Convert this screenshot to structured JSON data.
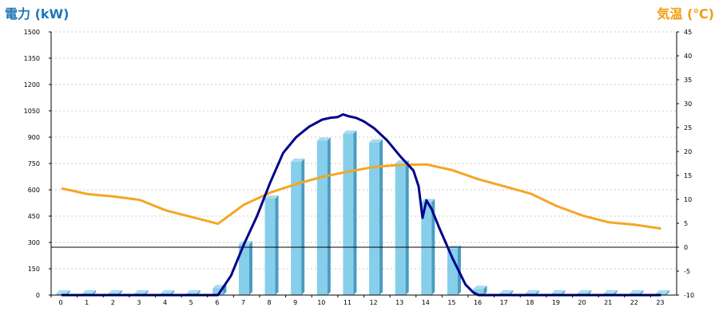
{
  "chart_data": {
    "type": "bar",
    "left_axis_label": "電力 (kW)",
    "right_axis_label": "気温 (℃)",
    "colors": {
      "left_label": "#1f77b4",
      "right_label": "#f39c12",
      "bar_front": "#87CEEB",
      "bar_side": "#4a9cc0",
      "bar_top": "#a8dcef",
      "power_line": "#00008B",
      "temp_line": "#F5A623",
      "grid": "#bbbbbb",
      "zero_line": "#000000"
    },
    "x_categories": [
      "0",
      "1",
      "2",
      "3",
      "4",
      "5",
      "6",
      "7",
      "8",
      "9",
      "10",
      "11",
      "12",
      "13",
      "14",
      "15",
      "16",
      "17",
      "18",
      "19",
      "20",
      "21",
      "22",
      "23"
    ],
    "left_axis": {
      "min": 0,
      "max": 1500,
      "ticks": [
        0,
        150,
        300,
        450,
        600,
        750,
        900,
        1050,
        1200,
        1350,
        1500
      ]
    },
    "right_axis": {
      "min": -10,
      "max": 45,
      "ticks": [
        -10,
        -5,
        0,
        5,
        10,
        15,
        20,
        25,
        30,
        35,
        40,
        45
      ]
    },
    "grid": true,
    "bars": {
      "name": "",
      "values": [
        10,
        10,
        10,
        10,
        10,
        10,
        40,
        290,
        550,
        760,
        880,
        920,
        870,
        750,
        530,
        265,
        35,
        10,
        10,
        10,
        10,
        10,
        10,
        10
      ]
    },
    "power_line": {
      "x": [
        6,
        6.5,
        7,
        7.5,
        8,
        8.5,
        9,
        9.5,
        10,
        10.3,
        10.6,
        10.8,
        11,
        11.3,
        11.6,
        12,
        12.5,
        13,
        13.5,
        13.7,
        13.85,
        14,
        14.2,
        14.5,
        15,
        15.5,
        15.8,
        16,
        16.5
      ],
      "y": [
        0,
        110,
        290,
        450,
        640,
        810,
        900,
        960,
        1000,
        1010,
        1015,
        1030,
        1020,
        1010,
        990,
        950,
        880,
        790,
        710,
        620,
        440,
        540,
        490,
        380,
        210,
        60,
        15,
        0,
        0
      ]
    },
    "temperature": {
      "x": [
        0,
        1,
        2,
        3,
        4,
        5,
        6,
        7,
        8,
        9,
        10,
        11,
        12,
        13,
        14,
        15,
        16,
        17,
        18,
        19,
        20,
        21,
        22,
        23
      ],
      "y": [
        12.3,
        11.1,
        10.6,
        9.9,
        7.7,
        6.3,
        4.9,
        8.9,
        11.4,
        13.2,
        14.7,
        15.8,
        16.8,
        17.2,
        17.3,
        16.1,
        14.2,
        12.7,
        11.2,
        8.6,
        6.6,
        5.2,
        4.7,
        3.9
      ]
    }
  }
}
